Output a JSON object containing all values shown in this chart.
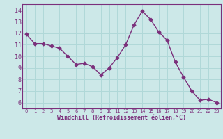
{
  "x": [
    0,
    1,
    2,
    3,
    4,
    5,
    6,
    7,
    8,
    9,
    10,
    11,
    12,
    13,
    14,
    15,
    16,
    17,
    18,
    19,
    20,
    21,
    22,
    23
  ],
  "y": [
    11.9,
    11.1,
    11.1,
    10.9,
    10.7,
    10.0,
    9.3,
    9.4,
    9.1,
    8.4,
    9.0,
    9.9,
    11.0,
    12.7,
    13.9,
    13.2,
    12.1,
    11.4,
    9.5,
    8.2,
    7.0,
    6.2,
    6.3,
    6.0
  ],
  "line_color": "#7b2f7b",
  "marker": "D",
  "bg_color": "#cce8e8",
  "grid_color": "#b0d8d8",
  "xlabel": "Windchill (Refroidissement éolien,°C)",
  "xlabel_color": "#7b2f7b",
  "tick_color": "#7b2f7b",
  "spine_color": "#7b2f7b",
  "ylim": [
    5.5,
    14.5
  ],
  "xlim": [
    -0.5,
    23.5
  ],
  "yticks": [
    6,
    7,
    8,
    9,
    10,
    11,
    12,
    13,
    14
  ],
  "xticks": [
    0,
    1,
    2,
    3,
    4,
    5,
    6,
    7,
    8,
    9,
    10,
    11,
    12,
    13,
    14,
    15,
    16,
    17,
    18,
    19,
    20,
    21,
    22,
    23
  ]
}
